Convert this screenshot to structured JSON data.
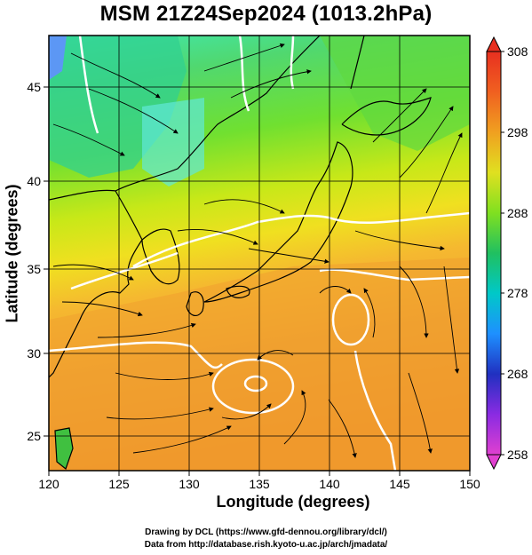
{
  "title": "MSM 21Z24Sep2024 (1013.2hPa)",
  "map": {
    "xlabel": "Longitude (degrees)",
    "ylabel": "Latitude  (degrees)",
    "lon_range": [
      120,
      150
    ],
    "lat_range": [
      22.4,
      47.6
    ],
    "x_ticks": [
      "120",
      "125",
      "130",
      "135",
      "140",
      "145",
      "150"
    ],
    "y_ticks": [
      "25",
      "30",
      "35",
      "40",
      "45"
    ],
    "grid": true,
    "field": "temperature with wind streamlines",
    "colorbar": {
      "ticks": [
        "258",
        "268",
        "278",
        "288",
        "298",
        "308"
      ],
      "range": [
        258,
        308
      ],
      "colors": [
        "#e040d0",
        "#8a2be2",
        "#2030c0",
        "#1e90ff",
        "#00c8c8",
        "#20c060",
        "#80e020",
        "#e0e020",
        "#f0a020",
        "#f06020",
        "#e83020"
      ]
    }
  },
  "credits": {
    "line1": "Drawing by DCL (https://www.gfd-dennou.org/library/dcl/)",
    "line2": "Data from http://database.rish.kyoto-u.ac.jp/arch/jmadata/"
  }
}
